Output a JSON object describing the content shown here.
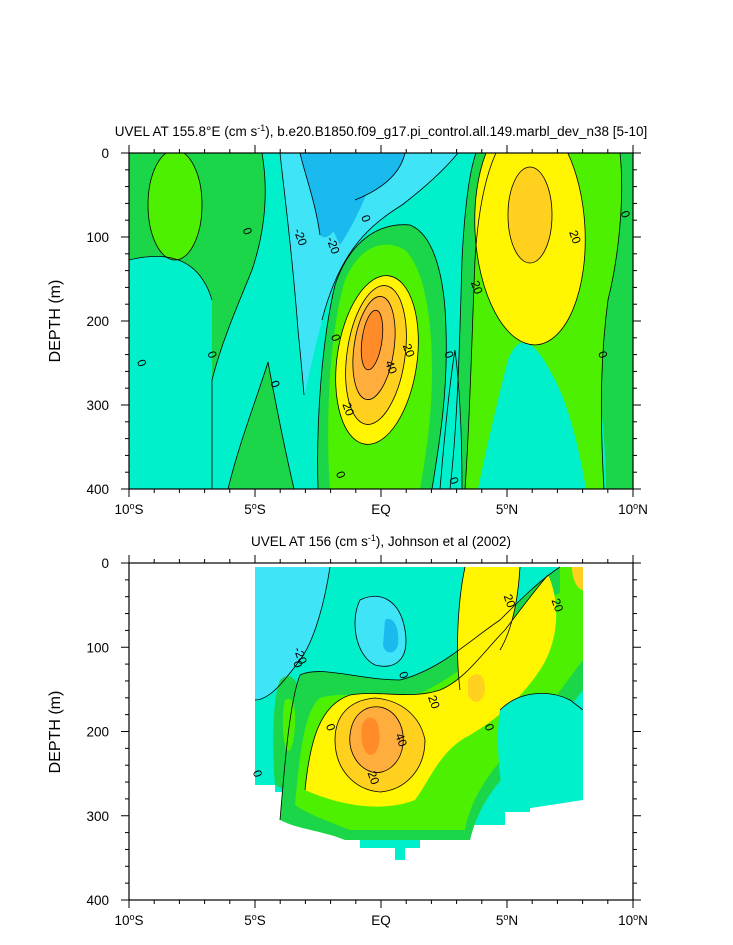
{
  "chart_data": [
    {
      "type": "heatmap",
      "title": "UVEL AT 155.8°E (cm s⁻¹), b.e20.B1850.f09_g17.pi_control.all.149.marbl_dev_n38 [5-10]",
      "xlabel": "",
      "ylabel": "DEPTH (m)",
      "xlim": [
        -10,
        10
      ],
      "ylim": [
        400,
        0
      ],
      "x_ticks": [
        -10,
        -5,
        0,
        5,
        10
      ],
      "x_tick_labels": [
        "10°S",
        "5°S",
        "EQ",
        "5°N",
        "10°N"
      ],
      "y_ticks": [
        0,
        100,
        200,
        300,
        400
      ],
      "y_tick_labels": [
        "0",
        "100",
        "200",
        "300",
        "400"
      ],
      "contour_interval": 10,
      "fill_colors": {
        "-40": "#1ab9ee",
        "-30": "#1ab9ee",
        "-20": "#40e4f7",
        "-10": "#00f0cc",
        "0": "#1cd64a",
        "10": "#4cf000",
        "20": "#fff500",
        "30": "#ffd11e",
        "40": "#ffad3c",
        "50": "#ff8c28"
      },
      "contour_labels": [
        {
          "x": -9.5,
          "y": 250,
          "text": "0"
        },
        {
          "x": -6.7,
          "y": 240,
          "text": "0"
        },
        {
          "x": -5.3,
          "y": 93,
          "text": "0"
        },
        {
          "x": -4.2,
          "y": 275,
          "text": "0"
        },
        {
          "x": -3.2,
          "y": 100,
          "text": "-20"
        },
        {
          "x": -1.9,
          "y": 110,
          "text": "-20"
        },
        {
          "x": -0.6,
          "y": 78,
          "text": "0"
        },
        {
          "x": -1.8,
          "y": 220,
          "text": "0"
        },
        {
          "x": -1.3,
          "y": 305,
          "text": "20"
        },
        {
          "x": 1.1,
          "y": 235,
          "text": "20"
        },
        {
          "x": 0.4,
          "y": 255,
          "text": "40"
        },
        {
          "x": 2.7,
          "y": 240,
          "text": "0"
        },
        {
          "x": 2.9,
          "y": 390,
          "text": "0"
        },
        {
          "x": -1.6,
          "y": 383,
          "text": "0"
        },
        {
          "x": 3.8,
          "y": 160,
          "text": "20"
        },
        {
          "x": 7.7,
          "y": 100,
          "text": "20"
        },
        {
          "x": 8.8,
          "y": 240,
          "text": "0"
        },
        {
          "x": 9.7,
          "y": 73,
          "text": "0"
        }
      ]
    },
    {
      "type": "heatmap",
      "title": "UVEL AT 156 (cm s⁻¹), Johnson et al (2002)",
      "xlabel": "",
      "ylabel": "DEPTH (m)",
      "xlim": [
        -10,
        10
      ],
      "ylim": [
        400,
        0
      ],
      "x_ticks": [
        -10,
        -5,
        0,
        5,
        10
      ],
      "x_tick_labels": [
        "10°S",
        "5°S",
        "EQ",
        "5°N",
        "10°N"
      ],
      "y_ticks": [
        0,
        100,
        200,
        300,
        400
      ],
      "y_tick_labels": [
        "0",
        "100",
        "200",
        "300",
        "400"
      ],
      "data_extent_x": [
        -5,
        8
      ],
      "contour_labels": [
        {
          "x": -3.2,
          "y": 110,
          "text": "-20"
        },
        {
          "x": -3.3,
          "y": 120,
          "text": "0"
        },
        {
          "x": -4.9,
          "y": 250,
          "text": "0"
        },
        {
          "x": -2.0,
          "y": 195,
          "text": "0"
        },
        {
          "x": 0.9,
          "y": 133,
          "text": "0"
        },
        {
          "x": 2.1,
          "y": 165,
          "text": "20"
        },
        {
          "x": 0.8,
          "y": 210,
          "text": "40"
        },
        {
          "x": -0.3,
          "y": 255,
          "text": "20"
        },
        {
          "x": 5.1,
          "y": 45,
          "text": "20"
        },
        {
          "x": 7.0,
          "y": 50,
          "text": "20"
        },
        {
          "x": 4.3,
          "y": 195,
          "text": "0"
        }
      ]
    }
  ]
}
